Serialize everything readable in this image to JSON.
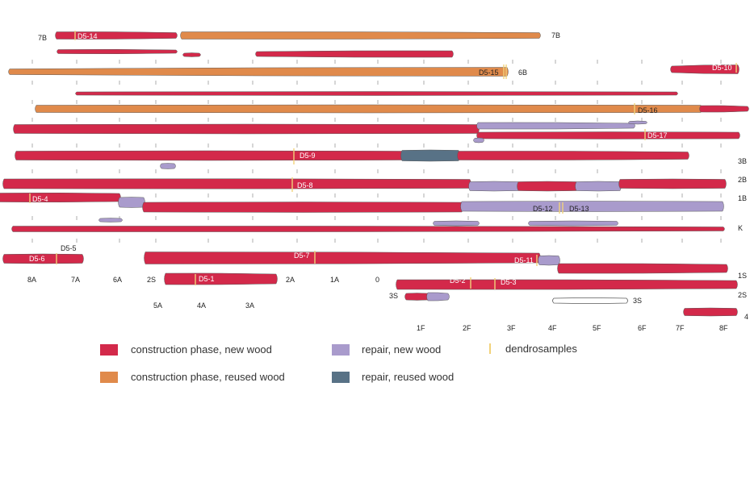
{
  "colors": {
    "construction_new": "#d3294a",
    "construction_reused": "#e08a4b",
    "repair_new": "#a99bcc",
    "repair_reused": "#587286",
    "dendro": "#f2d27a",
    "outline": "#5a5a5a",
    "tick": "#9a9a9a",
    "text": "#222222"
  },
  "legend": [
    {
      "label": "construction phase, new wood",
      "kind": "swatch",
      "color": "#d3294a"
    },
    {
      "label": "construction phase, reused wood",
      "kind": "swatch",
      "color": "#e08a4b"
    },
    {
      "label": "repair, new wood",
      "kind": "swatch",
      "color": "#a99bcc"
    },
    {
      "label": "repair, reused wood",
      "kind": "swatch",
      "color": "#587286"
    },
    {
      "label": "dendrosamples",
      "kind": "line",
      "color": "#f2d27a"
    }
  ],
  "row_labels": [
    "7B",
    "7B",
    "6B",
    "3B",
    "2B",
    "1B",
    "K",
    "1S",
    "2S",
    "3S",
    "3S",
    "4"
  ],
  "axis_labels_upper": [
    "8A",
    "7A",
    "6A",
    "2S",
    "2A",
    "1A",
    "0"
  ],
  "axis_labels_lower": [
    "5A",
    "4A",
    "3A"
  ],
  "axis_labels_bottom": [
    "1F",
    "2F",
    "3F",
    "4F",
    "5F",
    "6F",
    "7F",
    "8F"
  ],
  "sample_labels": [
    "D5-14",
    "D5-15",
    "D5-10",
    "D5-16",
    "D5-17",
    "D5-9",
    "D5-8",
    "D5-4",
    "D5-12",
    "D5-13",
    "D5-5",
    "D5-6",
    "D5-7",
    "D5-11",
    "D5-1",
    "D5-2",
    "D5-3"
  ]
}
